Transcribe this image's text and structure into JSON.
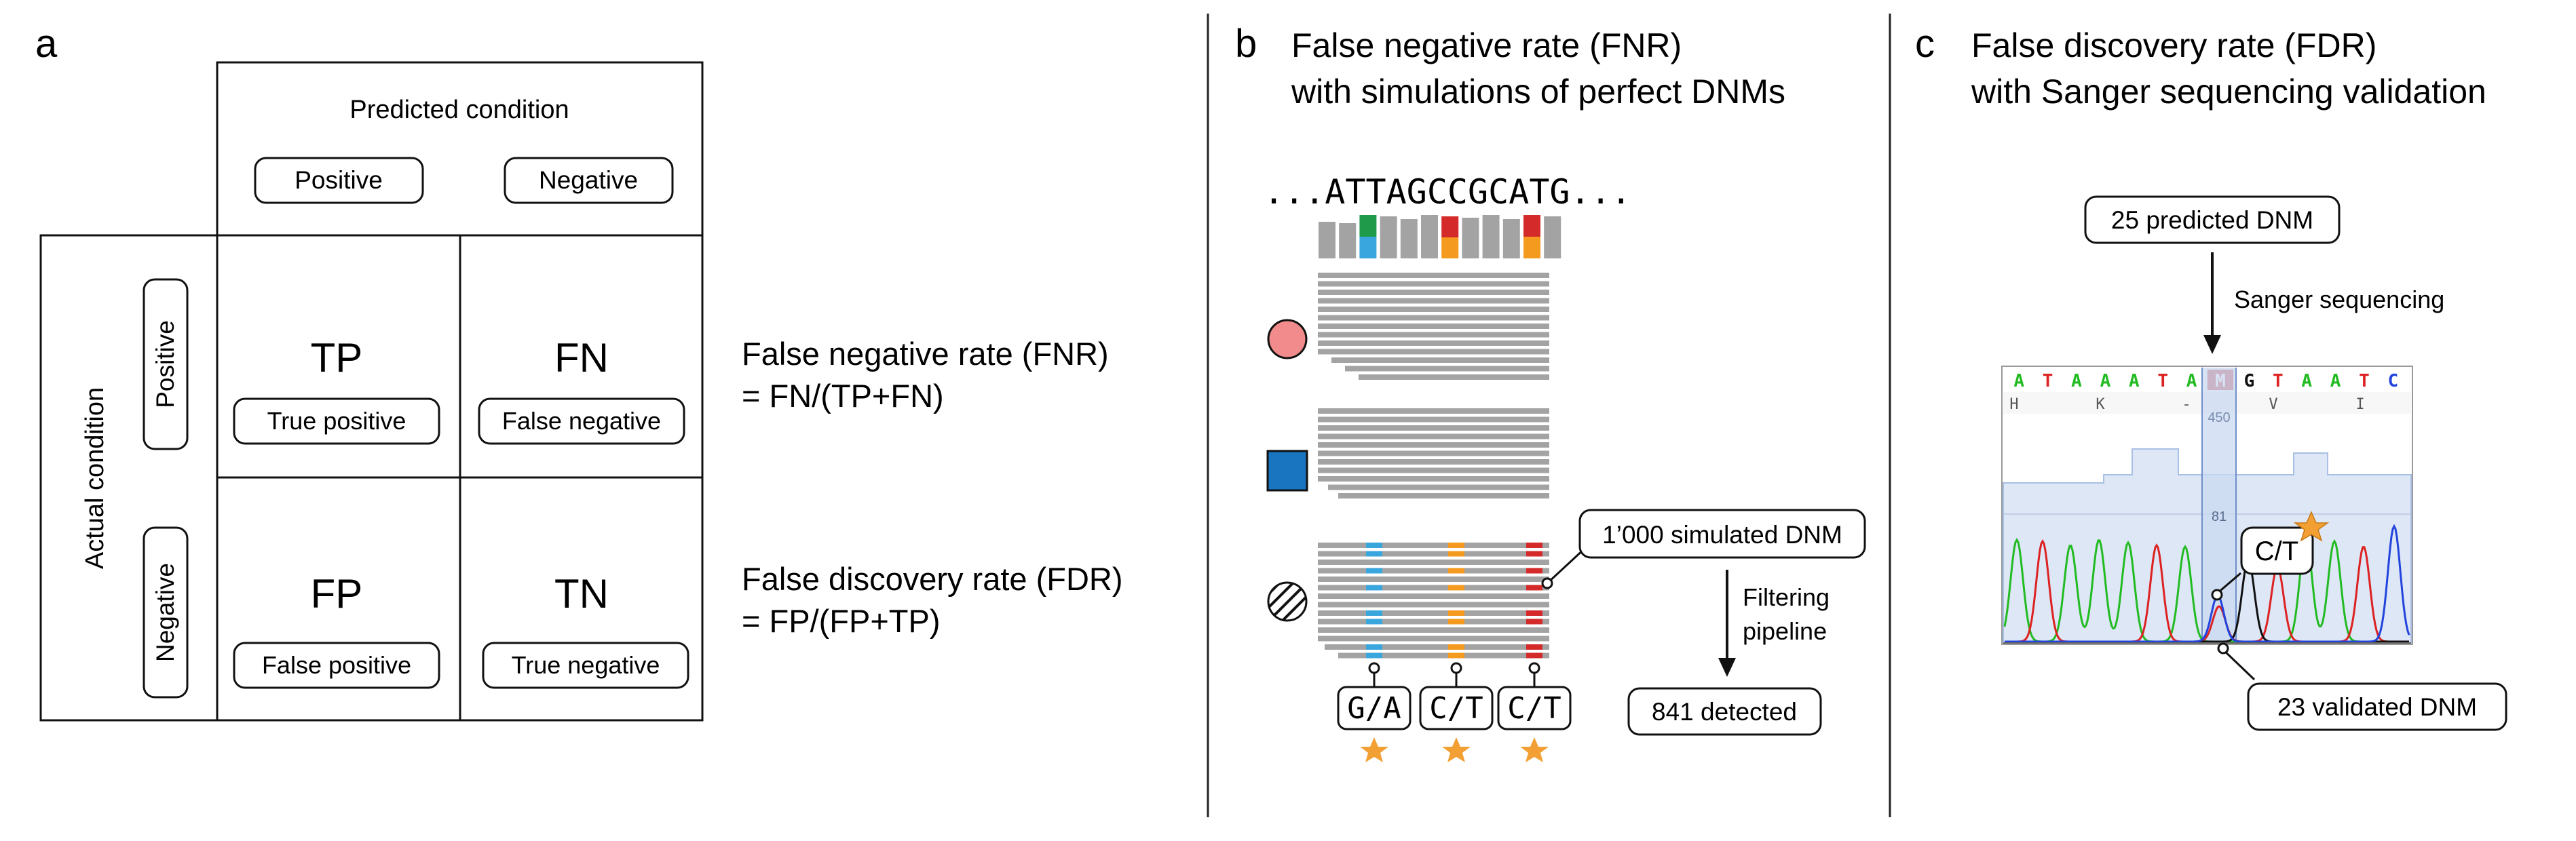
{
  "panel_a": {
    "letter": "a",
    "predicted_condition": "Predicted condition",
    "actual_condition": "Actual condition",
    "positive": "Positive",
    "negative": "Negative",
    "cells": {
      "tp": {
        "abbr": "TP",
        "label": "True positive"
      },
      "fn": {
        "abbr": "FN",
        "label": "False negative"
      },
      "fp": {
        "abbr": "FP",
        "label": "False positive"
      },
      "tn": {
        "abbr": "TN",
        "label": "True negative"
      }
    },
    "fnr_title": "False negative rate (FNR)",
    "fnr_formula": "= FN/(TP+FN)",
    "fdr_title": "False discovery rate (FDR)",
    "fdr_formula": "= FP/(FP+TP)"
  },
  "panel_b": {
    "letter": "b",
    "title_line1": "False negative rate (FNR)",
    "title_line2": "with simulations of perfect DNMs",
    "sequence": "...ATTAGCCGCATG...",
    "simulated_label": "1’000 simulated DNM",
    "pipeline_line1": "Filtering",
    "pipeline_line2": "pipeline",
    "detected_label": "841 detected",
    "alleles": [
      "G/A",
      "C/T",
      "C/T"
    ]
  },
  "panel_c": {
    "letter": "c",
    "title_line1": "False discovery rate (FDR)",
    "title_line2": "with Sanger sequencing validation",
    "predicted_label": "25 predicted DNM",
    "sanger_label": "Sanger sequencing",
    "bases": [
      "A",
      "T",
      "A",
      "A",
      "A",
      "T",
      "A",
      "M",
      "G",
      "T",
      "A",
      "A",
      "T",
      "C"
    ],
    "aa_row": [
      "H",
      "K",
      "-",
      "V",
      "I"
    ],
    "position_label": "450",
    "quality_label": "81",
    "allele_label": "C/T",
    "validated_label": "23 validated DNM"
  },
  "colors": {
    "A": "#22bb22",
    "T": "#dd2222",
    "G": "#111111",
    "C": "#2244dd",
    "read_gray": "#a3a3a3",
    "mutation_blue": "#3aa6de",
    "mutation_orange": "#f39a1f",
    "mutation_red": "#d42a2a",
    "mutation_green": "#1f9a4b",
    "circle_pink": "#f28b8b",
    "square_blue": "#1a75c0",
    "star": "#f2a034"
  }
}
